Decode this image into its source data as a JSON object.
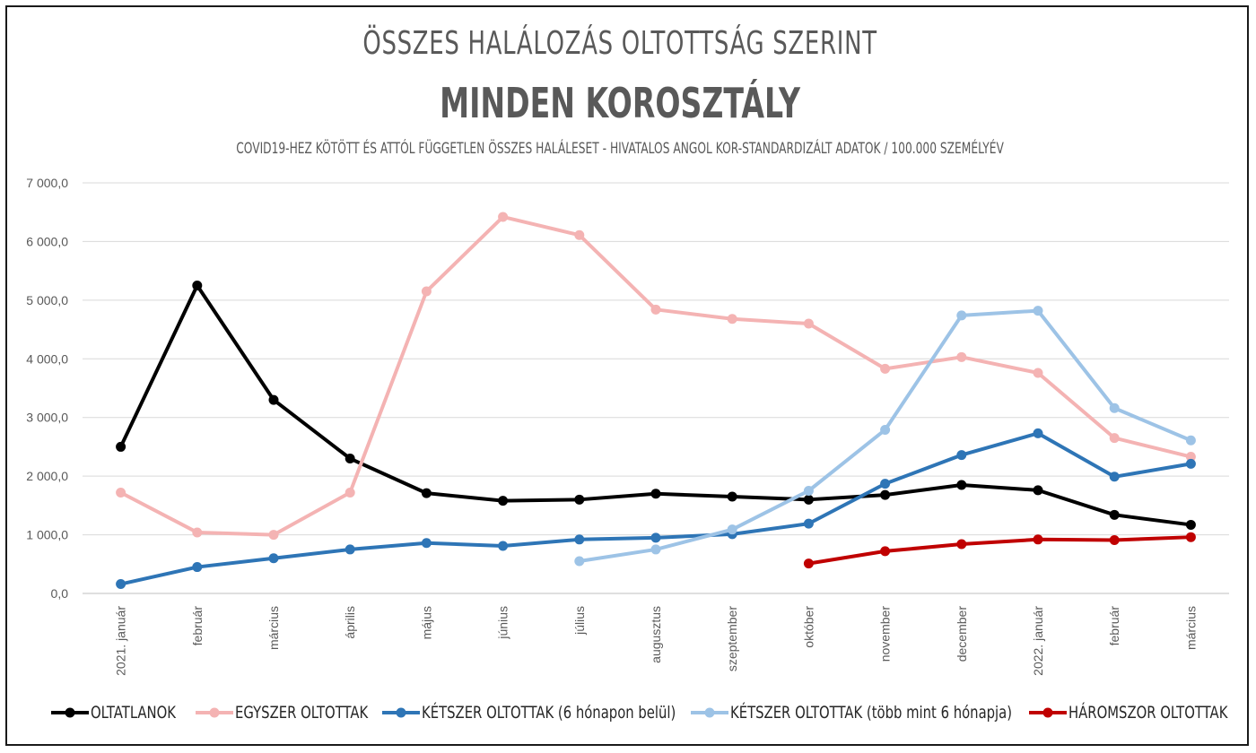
{
  "title": "ÖSSZES HALÁLOZÁS OLTOTTSÁG SZERINT",
  "title2": "MINDEN KOROSZTÁLY",
  "subtitle": "COVID19-HEZ KÖTÖTT ÉS ATTÓL FÜGGETLEN ÖSSZES HALÁLESET - HIVATALOS ANGOL KOR-STANDARDIZÁLT ADATOK / 100.000 SZEMÉLYÉV",
  "chart_data": {
    "type": "line",
    "title": "ÖSSZES HALÁLOZÁS OLTOTTSÁG SZERINT",
    "subtitle": "MINDEN KOROSZTÁLY",
    "ylim": [
      0,
      7000
    ],
    "yticks": [
      "0,0",
      "1 000,0",
      "2 000,0",
      "3 000,0",
      "4 000,0",
      "5 000,0",
      "6 000,0",
      "7 000,0"
    ],
    "grid": true,
    "legend_position": "bottom",
    "categories": [
      "2021. január",
      "február",
      "március",
      "április",
      "május",
      "június",
      "július",
      "augusztus",
      "szeptember",
      "október",
      "november",
      "december",
      "2022. január",
      "február",
      "március"
    ],
    "series": [
      {
        "name": "OLTATLANOK",
        "color": "#000000",
        "values": [
          2500,
          5250,
          3300,
          2300,
          1710,
          1580,
          1600,
          1700,
          1650,
          1600,
          1680,
          1850,
          1760,
          1340,
          1170
        ]
      },
      {
        "name": "EGYSZER OLTOTTAK",
        "color": "#f4b3b3",
        "values": [
          1720,
          1040,
          1000,
          1720,
          5150,
          6420,
          6110,
          4840,
          4680,
          4600,
          3830,
          4030,
          3760,
          2650,
          2330
        ]
      },
      {
        "name": "KÉTSZER OLTOTTAK (6 hónapon belül)",
        "color": "#2e75b6",
        "values": [
          160,
          450,
          600,
          750,
          860,
          810,
          920,
          950,
          1010,
          1190,
          1870,
          2360,
          2730,
          1990,
          2210
        ]
      },
      {
        "name": "KÉTSZER OLTOTTAK (több mint 6 hónapja)",
        "color": "#9dc3e6",
        "values": [
          null,
          null,
          null,
          null,
          null,
          null,
          550,
          750,
          1090,
          1750,
          2790,
          4740,
          4820,
          3160,
          2610
        ]
      },
      {
        "name": "HÁROMSZOR OLTOTTAK",
        "color": "#c00000",
        "values": [
          null,
          null,
          null,
          null,
          null,
          null,
          null,
          null,
          null,
          510,
          720,
          840,
          920,
          910,
          960
        ]
      }
    ]
  }
}
